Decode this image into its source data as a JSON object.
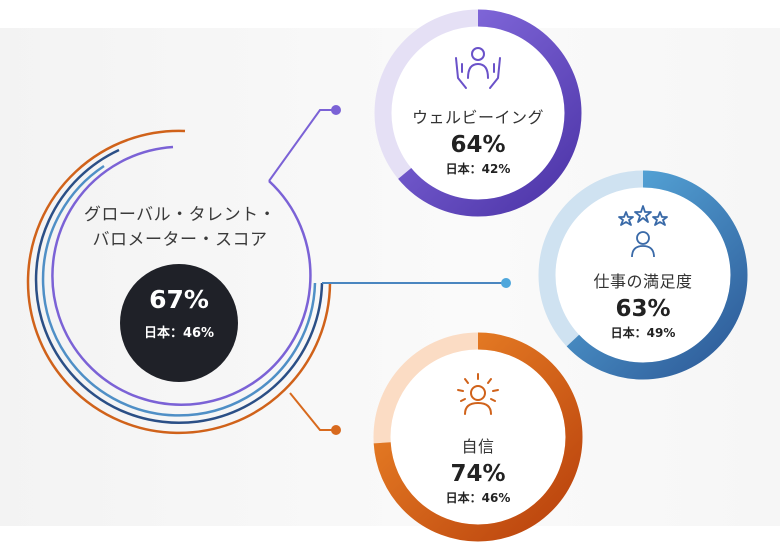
{
  "overall": {
    "title_line1": "グローバル・タレント・",
    "title_line2": "バロメーター・スコア",
    "score": "67%",
    "japan": "日本：46%"
  },
  "nodes": [
    {
      "key": "wellbeing",
      "name": "ウェルビーイング",
      "score": "64%",
      "japan": "日本：42%",
      "value": 0.64,
      "icon": "person-in-hands-icon",
      "color_dark": "#5b43b8",
      "color_light": "#e5e0f5"
    },
    {
      "key": "satisfaction",
      "name": "仕事の満足度",
      "score": "63%",
      "japan": "日本：49%",
      "value": 0.63,
      "icon": "person-with-stars-icon",
      "color_dark": "#3a6aa8",
      "color_light": "#cfe2f1"
    },
    {
      "key": "confidence",
      "name": "自信",
      "score": "74%",
      "japan": "日本：46%",
      "value": 0.74,
      "icon": "radiant-person-icon",
      "color_dark": "#c8540f",
      "color_light": "#fbdcc4"
    }
  ],
  "colors": {
    "purple": "#7b62d6",
    "blue": "#4a86c0",
    "orange": "#d86a1e",
    "dark_badge": "#1f2128"
  }
}
